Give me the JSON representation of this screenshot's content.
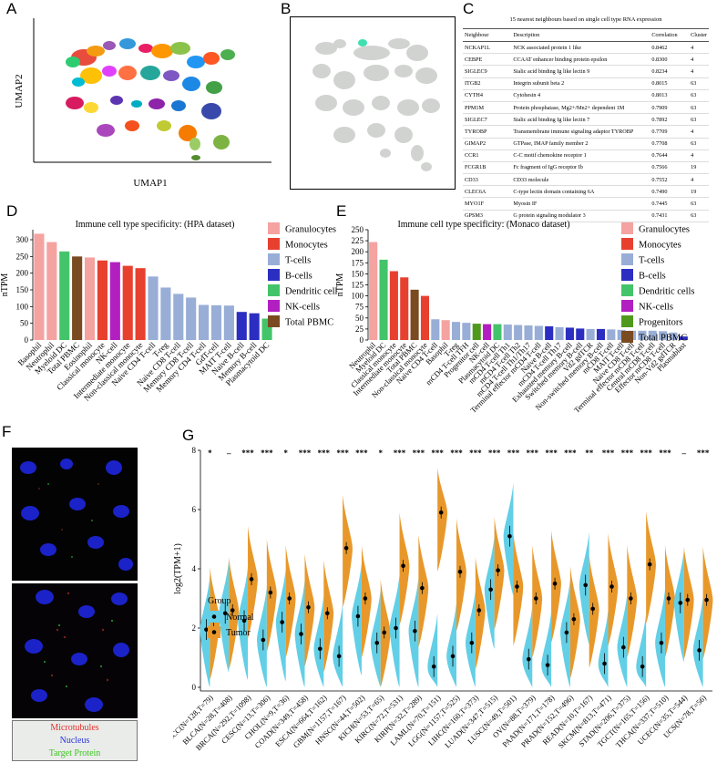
{
  "panel_letters": {
    "a": "A",
    "b": "B",
    "c": "C",
    "d": "D",
    "e": "E",
    "f": "F",
    "g": "G"
  },
  "panel_a": {
    "xlabel": "UMAP1",
    "ylabel": "UMAP2"
  },
  "panel_c": {
    "title": "15 nearest neighbours based on single cell type RNA expression",
    "headers": [
      "Neighbour",
      "Description",
      "Correlation",
      "Cluster"
    ],
    "rows": [
      [
        "NCKAP1L",
        "NCK associated protein 1 like",
        "0.8462",
        "4"
      ],
      [
        "CEBPE",
        "CCAAT enhancer binding protein epsilon",
        "0.8300",
        "4"
      ],
      [
        "SIGLEC9",
        "Sialic acid binding Ig like lectin 9",
        "0.8234",
        "4"
      ],
      [
        "ITGB2",
        "Integrin subunit beta 2",
        "0.8015",
        "63"
      ],
      [
        "CYTH4",
        "Cytohesin 4",
        "0.8013",
        "63"
      ],
      [
        "PPM1M",
        "Protein phosphatase, Mg2+/Mn2+ dependent 1M",
        "0.7909",
        "63"
      ],
      [
        "SIGLEC7",
        "Sialic acid binding Ig like lectin 7",
        "0.7892",
        "63"
      ],
      [
        "TYROBP",
        "Transmembrane immune signaling adaptor TYROBP",
        "0.7709",
        "4"
      ],
      [
        "GIMAP2",
        "GTPase, IMAP family member 2",
        "0.7708",
        "63"
      ],
      [
        "CCR1",
        "C-C motif chemokine receptor 1",
        "0.7644",
        "4"
      ],
      [
        "FCGR1B",
        "Fc fragment of IgG receptor Ib",
        "0.7566",
        "19"
      ],
      [
        "CD33",
        "CD33 molecule",
        "0.7552",
        "4"
      ],
      [
        "CLEC6A",
        "C-type lectin domain containing 6A",
        "0.7490",
        "19"
      ],
      [
        "MYO1F",
        "Myosin IF",
        "0.7445",
        "63"
      ],
      [
        "GPSM3",
        "G protein signaling modulator 3",
        "0.7431",
        "63"
      ]
    ]
  },
  "legend_colors": {
    "Granulocytes": "#f4a3a0",
    "Monocytes": "#e8402f",
    "T-cells": "#98aed6",
    "B-cells": "#2b2ec0",
    "Dendritic cells": "#44c46a",
    "NK-cells": "#b21fc0",
    "Progenitors": "#4f9a1c",
    "Total PBMC": "#7a4a21"
  },
  "panel_f_legend": {
    "microtubules": "Microtubules",
    "nucleus": "Nucleus",
    "target": "Target Protein"
  },
  "chart_data": [
    {
      "type": "bar",
      "title": "Immune cell type specificity: (HPA dataset)",
      "ylabel": "nTPM",
      "ylim": [
        0,
        330
      ],
      "yticks": [
        0,
        50,
        100,
        150,
        200,
        250,
        300
      ],
      "categories": [
        "Basophil",
        "Neutrophil",
        "Myeloid DC",
        "Total PBMC",
        "Eosinophil",
        "Classical monocyte",
        "NK-cell",
        "Intermediate monocyte",
        "Non-classical monocyte",
        "Naive CD4 T-cell",
        "T-reg",
        "Naive CD8 T-cell",
        "Memory CD8 T-cell",
        "Memory CD4 T-cell",
        "GdT-cell",
        "MAIT T-cell",
        "Naive B-cell",
        "Memory B-cell",
        "Plasmacytoid DC"
      ],
      "values": [
        318,
        293,
        265,
        250,
        247,
        238,
        233,
        222,
        215,
        190,
        157,
        138,
        127,
        105,
        104,
        103,
        84,
        80,
        64
      ],
      "groups": [
        "Granulocytes",
        "Granulocytes",
        "Dendritic cells",
        "Total PBMC",
        "Granulocytes",
        "Monocytes",
        "NK-cells",
        "Monocytes",
        "Monocytes",
        "T-cells",
        "T-cells",
        "T-cells",
        "T-cells",
        "T-cells",
        "T-cells",
        "T-cells",
        "B-cells",
        "B-cells",
        "Dendritic cells"
      ],
      "legend": [
        "Granulocytes",
        "Monocytes",
        "T-cells",
        "B-cells",
        "Dendritic cells",
        "NK-cells",
        "Total PBMC"
      ]
    },
    {
      "type": "bar",
      "title": "Immune cell type specificity: (Monaco dataset)",
      "ylabel": "nTPM",
      "ylim": [
        0,
        250
      ],
      "yticks": [
        0,
        25,
        50,
        75,
        100,
        125,
        150,
        175,
        200,
        225,
        250
      ],
      "categories": [
        "Neutrophil",
        "Myeloid DC",
        "Classical monocyte",
        "Intermediate monocyte",
        "Total PBMC",
        "Non-classical monocyte",
        "Naive CD4 T-cell",
        "Basophil",
        "T-reg",
        "mCD4 T-cell TFH",
        "Progenitor cell",
        "NK-cell",
        "Plasmacytoid DC",
        "mCD4 T-cell Th1",
        "mCD4 T-cell Th2",
        "mCD4 T-cell Th1/Th17",
        "Terminal effector mCD4 T-cell",
        "Naive B-cell",
        "mCD4 T-cell Th17",
        "Exhausted memory B-cell",
        "Switched memory B-cell",
        "Vd2 gdTCR",
        "Non-switched memory B-cell",
        "mCD8 T-cell",
        "MAIT T-cell",
        "Naive CD8 T-cell",
        "Terminal effector mCD8 T-cell",
        "Central mCD8 T-cell",
        "Effector mCD8 T-cell",
        "Non-Vd2 gdTCR",
        "Plasmablast"
      ],
      "values": [
        222,
        182,
        156,
        142,
        114,
        100,
        47,
        45,
        41,
        39,
        37,
        36,
        36,
        35,
        34,
        33,
        32,
        31,
        29,
        28,
        26,
        25,
        25,
        24,
        23,
        21,
        21,
        21,
        20,
        17,
        8
      ],
      "groups": [
        "Granulocytes",
        "Dendritic cells",
        "Monocytes",
        "Monocytes",
        "Total PBMC",
        "Monocytes",
        "T-cells",
        "Granulocytes",
        "T-cells",
        "T-cells",
        "Progenitors",
        "NK-cells",
        "Dendritic cells",
        "T-cells",
        "T-cells",
        "T-cells",
        "T-cells",
        "B-cells",
        "T-cells",
        "B-cells",
        "B-cells",
        "T-cells",
        "B-cells",
        "T-cells",
        "T-cells",
        "T-cells",
        "T-cells",
        "T-cells",
        "T-cells",
        "T-cells",
        "B-cells"
      ],
      "legend": [
        "Granulocytes",
        "Monocytes",
        "T-cells",
        "B-cells",
        "Dendritic cells",
        "NK-cells",
        "Progenitors",
        "Total PBMC"
      ]
    },
    {
      "type": "violin",
      "ylabel": "log2(TPM+1)",
      "ylim": [
        0,
        8
      ],
      "yticks": [
        0,
        2,
        4,
        6,
        8
      ],
      "legend_title": "Group",
      "series": [
        {
          "name": "Normal",
          "color": "#62cfe6"
        },
        {
          "name": "Tumor",
          "color": "#e8982a"
        }
      ],
      "categories": [
        "ACC(N=128,T=79)",
        "BLCA(N=28,T=408)",
        "BRCA(N=292,T=1098)",
        "CESC(N=13,T=306)",
        "CHOL(N=9,T=36)",
        "COAD(N=349,T=458)",
        "ESCA(N=664,T=162)",
        "GBM(N=1157,T=167)",
        "HNSC(N=44,T=502)",
        "KICH(N=53,T=65)",
        "KIRC(N=72,T=531)",
        "KIRP(N=32,T=289)",
        "LAML(N=70,T=151)",
        "LGG(N=1157,T=525)",
        "LIHC(N=160,T=373)",
        "LUAD(N=347,T=515)",
        "LUSC(N=49,T=501)",
        "OV(N=88,T=379)",
        "PAAD(N=171,T=178)",
        "PRAD(N=152,T=496)",
        "READ(N=10,T=167)",
        "SKCM(N=813,T=471)",
        "STAD(N=206,T=375)",
        "TGCT(N=165,T=156)",
        "THCA(N=337,T=510)",
        "UCEC(N=35,T=544)",
        "UCS(N=78,T=56)"
      ],
      "normal_median": [
        1.95,
        2.5,
        2.25,
        1.6,
        2.2,
        1.8,
        1.3,
        1.05,
        2.4,
        1.5,
        2.0,
        1.9,
        0.7,
        1.05,
        1.5,
        3.3,
        5.1,
        0.95,
        0.75,
        1.85,
        3.45,
        0.8,
        1.35,
        0.7,
        1.5,
        2.85,
        1.25
      ],
      "tumor_median": [
        2.25,
        2.6,
        3.65,
        3.2,
        3.0,
        2.7,
        2.5,
        4.7,
        3.0,
        1.85,
        4.1,
        3.35,
        5.9,
        3.9,
        2.6,
        3.95,
        3.4,
        3.0,
        3.5,
        2.3,
        2.65,
        3.4,
        3.0,
        4.15,
        3.0,
        2.95,
        2.95
      ],
      "significance": [
        "*",
        "–",
        "***",
        "***",
        "*",
        "***",
        "***",
        "***",
        "***",
        "*",
        "***",
        "***",
        "***",
        "***",
        "***",
        "***",
        "***",
        "***",
        "***",
        "***",
        "**",
        "***",
        "***",
        "***",
        "***",
        "–",
        "***"
      ]
    }
  ]
}
